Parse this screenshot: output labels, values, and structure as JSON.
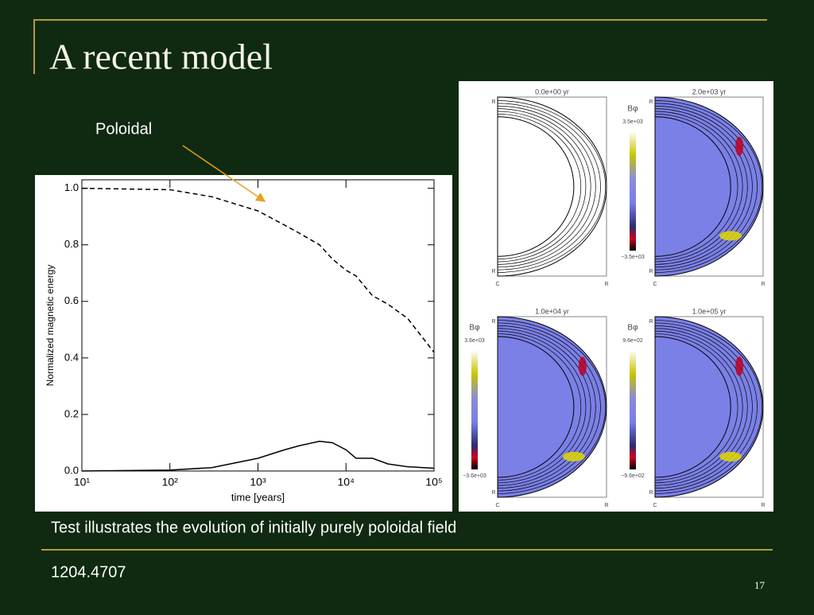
{
  "header": {
    "title": "A recent model"
  },
  "annotation": "Poloidal",
  "caption": "Test illustrates the evolution of initially purely poloidal field",
  "footer": "1204.4707",
  "page_number": "17",
  "chart_data": {
    "type": "line",
    "x_label": "time [years]",
    "y_label": "Normalized magnetic energy",
    "log_x": true,
    "x": [
      10,
      100,
      300,
      1000,
      2000,
      3000,
      5000,
      7000,
      10000,
      13000,
      20000,
      30000,
      50000,
      100000
    ],
    "series": [
      {
        "color": "#000000",
        "dashed": true,
        "values": [
          1.0,
          0.995,
          0.97,
          0.92,
          0.87,
          0.84,
          0.8,
          0.75,
          0.71,
          0.69,
          0.62,
          0.59,
          0.54,
          0.42
        ]
      },
      {
        "color": "#000000",
        "dashed": false,
        "values": [
          0,
          0.003,
          0.012,
          0.045,
          0.075,
          0.09,
          0.105,
          0.1,
          0.075,
          0.045,
          0.045,
          0.025,
          0.015,
          0.01
        ]
      }
    ],
    "xlim": [
      10,
      100000
    ],
    "xticks": [
      {
        "value": 10,
        "label": "10¹"
      },
      {
        "value": 100,
        "label": "10²"
      },
      {
        "value": 1000,
        "label": "10³"
      },
      {
        "value": 10000,
        "label": "10⁴"
      },
      {
        "value": 100000,
        "label": "10⁵"
      }
    ],
    "ylim": [
      0,
      1.03
    ],
    "yticks": [
      {
        "value": 0,
        "label": "0.0"
      },
      0.2,
      0.4,
      0.6,
      0.8,
      {
        "value": 1,
        "label": "1.0"
      }
    ]
  },
  "panels": [
    {
      "title": "0.0e+00 yr",
      "corner_labels": [
        "R",
        "R",
        "C",
        "R"
      ]
    },
    {
      "title": "2.0e+03 yr",
      "colorbar_label": "Bφ",
      "max_label": "3.5e+03",
      "min_label": "−3.5e+03",
      "corner_labels": [
        "R",
        "R",
        "C",
        "R"
      ]
    },
    {
      "title": "1.0e+04 yr",
      "colorbar_label": "Bφ",
      "max_label": "3.6e+03",
      "min_label": "−3.6e+03",
      "corner_labels": [
        "R",
        "R",
        "C",
        "R"
      ]
    },
    {
      "title": "1.0e+05 yr",
      "colorbar_label": "Bφ",
      "max_label": "9.6e+02",
      "min_label": "−9.6e+02",
      "corner_labels": [
        "R",
        "R",
        "C",
        "R"
      ]
    }
  ]
}
